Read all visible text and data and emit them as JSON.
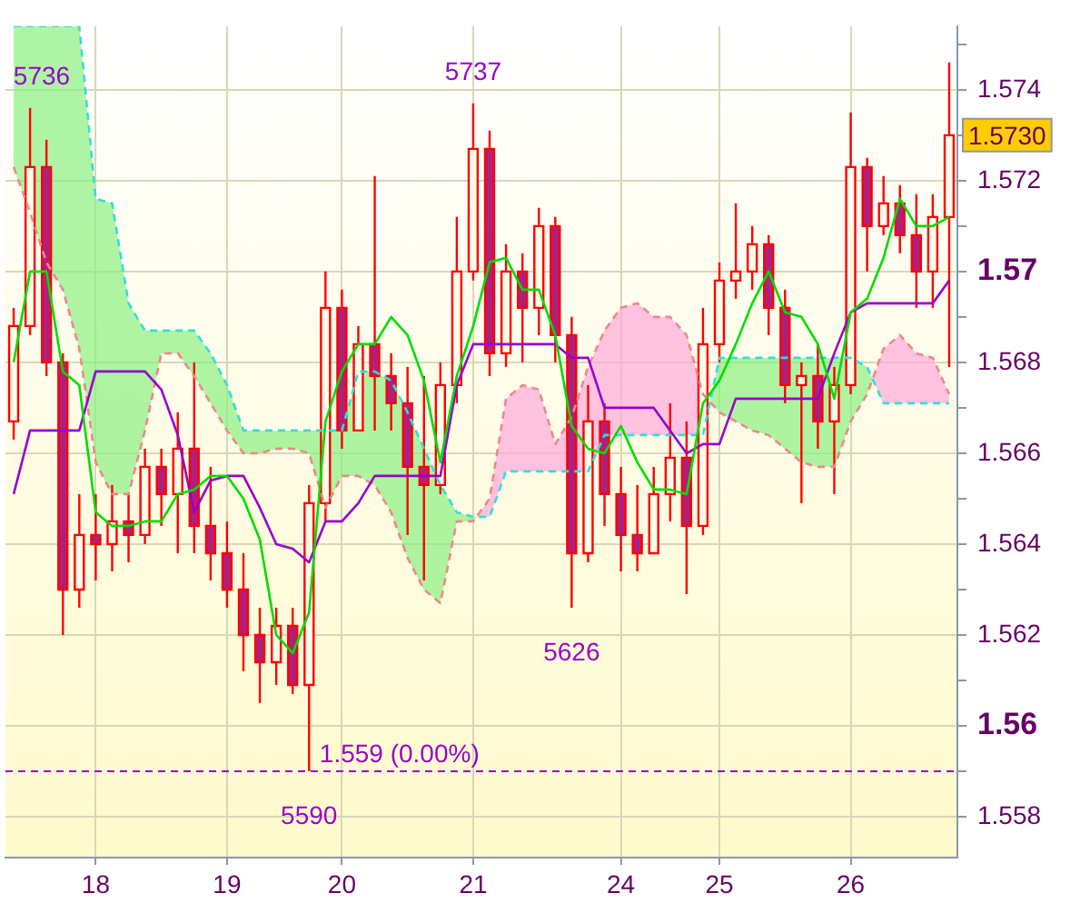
{
  "chart_data": {
    "type": "candlestick",
    "color": "#ff0000",
    "categories": [
      null,
      null,
      null,
      null,
      null,
      "18",
      null,
      null,
      null,
      null,
      null,
      null,
      null,
      "19",
      null,
      null,
      null,
      null,
      null,
      null,
      "20",
      null,
      null,
      null,
      null,
      null,
      null,
      null,
      "21",
      null,
      null,
      null,
      null,
      null,
      null,
      null,
      null,
      "24",
      null,
      null,
      null,
      null,
      null,
      "25",
      null,
      null,
      null,
      null,
      null,
      null,
      null,
      "26",
      null,
      null,
      null,
      null,
      null,
      null
    ],
    "ohlc": [
      [
        1.5667,
        1.5692,
        1.5663,
        1.5688
      ],
      [
        1.5688,
        1.5736,
        1.5686,
        1.5723
      ],
      [
        1.5723,
        1.5729,
        1.5677,
        1.568
      ],
      [
        1.568,
        1.5682,
        1.562,
        1.563
      ],
      [
        1.563,
        1.5651,
        1.5626,
        1.5642
      ],
      [
        1.5642,
        1.5651,
        1.5632,
        1.564
      ],
      [
        1.564,
        1.5653,
        1.5634,
        1.5645
      ],
      [
        1.5645,
        1.5651,
        1.5636,
        1.5642
      ],
      [
        1.5642,
        1.5661,
        1.564,
        1.5657
      ],
      [
        1.5657,
        1.5661,
        1.5644,
        1.5651
      ],
      [
        1.5651,
        1.5669,
        1.5638,
        1.5661
      ],
      [
        1.5661,
        1.568,
        1.5638,
        1.5644
      ],
      [
        1.5644,
        1.5657,
        1.5632,
        1.5638
      ],
      [
        1.5638,
        1.5645,
        1.5626,
        1.563
      ],
      [
        1.563,
        1.5638,
        1.5612,
        1.562
      ],
      [
        1.562,
        1.5626,
        1.5605,
        1.5614
      ],
      [
        1.5614,
        1.5626,
        1.5609,
        1.5622
      ],
      [
        1.5622,
        1.5626,
        1.5607,
        1.5609
      ],
      [
        1.5609,
        1.5653,
        1.559,
        1.5649
      ],
      [
        1.5649,
        1.57,
        1.5645,
        1.5692
      ],
      [
        1.5692,
        1.5696,
        1.5661,
        1.5665
      ],
      [
        1.5665,
        1.5688,
        1.5665,
        1.5684
      ],
      [
        1.5684,
        1.5721,
        1.5665,
        1.5677
      ],
      [
        1.5677,
        1.5682,
        1.5665,
        1.5671
      ],
      [
        1.5671,
        1.5679,
        1.5642,
        1.5657
      ],
      [
        1.5657,
        1.5677,
        1.5632,
        1.5653
      ],
      [
        1.5653,
        1.568,
        1.5651,
        1.5675
      ],
      [
        1.5675,
        1.5712,
        1.5671,
        1.57
      ],
      [
        1.57,
        1.5737,
        1.5698,
        1.5727
      ],
      [
        1.5727,
        1.5731,
        1.5677,
        1.5682
      ],
      [
        1.5682,
        1.5706,
        1.5679,
        1.57
      ],
      [
        1.57,
        1.5704,
        1.568,
        1.5692
      ],
      [
        1.5692,
        1.5714,
        1.5686,
        1.571
      ],
      [
        1.571,
        1.5712,
        1.568,
        1.5686
      ],
      [
        1.5686,
        1.569,
        1.5626,
        1.5638
      ],
      [
        1.5638,
        1.5675,
        1.5636,
        1.5667
      ],
      [
        1.5667,
        1.5671,
        1.5644,
        1.5651
      ],
      [
        1.5651,
        1.5657,
        1.5634,
        1.5642
      ],
      [
        1.5642,
        1.5653,
        1.5634,
        1.5638
      ],
      [
        1.5638,
        1.5657,
        1.5638,
        1.5651
      ],
      [
        1.5651,
        1.5671,
        1.5645,
        1.5659
      ],
      [
        1.5659,
        1.5667,
        1.5629,
        1.5644
      ],
      [
        1.5644,
        1.5692,
        1.5642,
        1.5684
      ],
      [
        1.5684,
        1.5702,
        1.568,
        1.5698
      ],
      [
        1.5698,
        1.5715,
        1.5694,
        1.57
      ],
      [
        1.57,
        1.571,
        1.5696,
        1.5706
      ],
      [
        1.5706,
        1.5708,
        1.5686,
        1.5692
      ],
      [
        1.5692,
        1.5696,
        1.5671,
        1.5675
      ],
      [
        1.5675,
        1.568,
        1.5649,
        1.5677
      ],
      [
        1.5677,
        1.5684,
        1.5661,
        1.5667
      ],
      [
        1.5667,
        1.5679,
        1.5651,
        1.5675
      ],
      [
        1.5675,
        1.5735,
        1.5673,
        1.5723
      ],
      [
        1.5723,
        1.5725,
        1.57,
        1.571
      ],
      [
        1.571,
        1.5721,
        1.5708,
        1.5715
      ],
      [
        1.5715,
        1.5719,
        1.5704,
        1.5708
      ],
      [
        1.5708,
        1.5717,
        1.5692,
        1.57
      ],
      [
        1.57,
        1.5717,
        1.5692,
        1.5712
      ],
      [
        1.5712,
        1.5746,
        1.5679,
        1.573
      ]
    ],
    "value_labels": [
      null,
      "5736",
      null,
      null,
      null,
      null,
      null,
      null,
      null,
      null,
      null,
      null,
      null,
      null,
      null,
      null,
      null,
      null,
      "5590",
      null,
      null,
      null,
      null,
      null,
      null,
      null,
      null,
      null,
      "5737",
      null,
      null,
      null,
      null,
      null,
      "5626",
      null,
      null,
      null,
      null,
      null,
      null,
      null,
      null,
      null,
      null,
      null,
      null,
      null,
      null,
      null,
      null,
      null,
      null,
      null,
      null,
      null,
      null,
      null
    ],
    "ylim": [
      1.5571,
      1.5754
    ],
    "yticks": [
      1.558,
      {
        "value": 1.559,
        "label": null
      },
      1.56,
      {
        "value": 1.561,
        "label": null
      },
      1.562,
      {
        "value": 1.563,
        "label": null
      },
      1.564,
      {
        "value": 1.565,
        "label": null
      },
      1.566,
      {
        "value": 1.567,
        "label": null
      },
      1.568,
      {
        "value": 1.569,
        "label": null
      },
      1.57,
      {
        "value": 1.571,
        "label": null
      },
      1.572,
      {
        "value": 1.573,
        "label": null
      },
      1.574,
      {
        "value": 1.575,
        "label": null
      }
    ],
    "grid": true,
    "series": [
      {
        "type": "line",
        "color": "#00dd00",
        "values": [
          1.568,
          1.57,
          1.57,
          1.5678,
          1.5675,
          1.5647,
          1.5644,
          1.5644,
          1.5645,
          1.5645,
          1.5651,
          1.5652,
          1.5655,
          1.5655,
          1.565,
          1.5641,
          1.562,
          1.5616,
          1.5625,
          1.5667,
          1.5678,
          1.5684,
          1.5684,
          1.569,
          1.5686,
          1.5676,
          1.5658,
          1.5677,
          1.5688,
          1.5702,
          1.5703,
          1.5696,
          1.5696,
          1.5686,
          1.5666,
          1.5661,
          1.566,
          1.5666,
          1.5658,
          1.5652,
          1.5652,
          1.5651,
          1.5671,
          1.5676,
          1.5684,
          1.5693,
          1.57,
          1.5691,
          1.569,
          1.5684,
          1.5672,
          1.5691,
          1.5694,
          1.5703,
          1.5716,
          1.571,
          1.571,
          1.5712
        ]
      },
      {
        "type": "line",
        "color": "#9900cc",
        "values": [
          1.5651,
          1.5665,
          1.5665,
          1.5665,
          1.5665,
          1.5678,
          1.5678,
          1.5678,
          1.5678,
          1.5674,
          1.5664,
          1.5647,
          1.5654,
          1.5655,
          1.5655,
          1.5648,
          1.564,
          1.5639,
          1.5636,
          1.5645,
          1.5645,
          1.5649,
          1.5655,
          1.5655,
          1.5655,
          1.5655,
          1.5655,
          1.5675,
          1.5684,
          1.5684,
          1.5684,
          1.5684,
          1.5684,
          1.5684,
          1.5681,
          1.5681,
          1.567,
          1.567,
          1.567,
          1.567,
          1.5665,
          1.566,
          1.5662,
          1.5662,
          1.5672,
          1.5672,
          1.5672,
          1.5672,
          1.5672,
          1.5672,
          1.5682,
          1.5691,
          1.5693,
          1.5693,
          1.5693,
          1.5693,
          1.5693,
          1.5698
        ]
      },
      {
        "type": "line",
        "color": "#33dddd",
        "line_style": "dashed",
        "values": [
          1.5754,
          1.5754,
          1.5754,
          1.5754,
          1.5754,
          1.5716,
          1.5715,
          1.5693,
          1.5687,
          1.5687,
          1.5687,
          1.5687,
          1.5682,
          1.5675,
          1.5665,
          1.5665,
          1.5665,
          1.5665,
          1.5665,
          1.5665,
          1.5665,
          1.5678,
          1.5678,
          1.5676,
          1.5669,
          1.5661,
          1.5653,
          1.5647,
          1.5646,
          1.5646,
          1.5656,
          1.5656,
          1.5656,
          1.5656,
          1.5656,
          1.5656,
          1.5664,
          1.5664,
          1.5664,
          1.5664,
          1.5664,
          1.5664,
          1.5664,
          1.5681,
          1.5681,
          1.5681,
          1.5681,
          1.5681,
          1.5681,
          1.5681,
          1.5681,
          1.5681,
          1.5679,
          1.5671,
          1.5671,
          1.5671,
          1.5671,
          1.5671
        ]
      },
      {
        "type": "line",
        "color": "#ee8888",
        "line_style": "dashed",
        "lower": [
          1.5754,
          1.5754,
          1.5754,
          1.5754,
          1.5754,
          1.5716,
          1.5715,
          1.5693,
          1.5687,
          1.5687,
          1.5687,
          1.5687,
          1.5682,
          1.5675,
          1.5665,
          1.5665,
          1.5665,
          1.5665,
          1.5665,
          1.5665,
          1.5665,
          1.5678,
          1.5678,
          1.5676,
          1.5669,
          1.5661,
          1.5653,
          1.5647,
          1.5646,
          1.5646,
          1.5656,
          1.5656,
          1.5656,
          1.5656,
          1.5656,
          1.5656,
          1.5664,
          1.5664,
          1.5664,
          1.5664,
          1.5664,
          1.5664,
          1.5664,
          1.5681,
          1.5681,
          1.5681,
          1.5681,
          1.5681,
          1.5681,
          1.5681,
          1.5681,
          1.5681,
          1.5679,
          1.5671,
          1.5671,
          1.5671,
          1.5671,
          1.5671
        ],
        "upper": [
          1.5723,
          1.5713,
          1.5702,
          1.5696,
          1.5683,
          1.5658,
          1.5651,
          1.5651,
          1.5665,
          1.5682,
          1.5682,
          1.5677,
          1.5671,
          1.5665,
          1.566,
          1.566,
          1.5661,
          1.5661,
          1.566,
          1.5648,
          1.5655,
          1.5655,
          1.5653,
          1.5647,
          1.5637,
          1.563,
          1.5627,
          1.5645,
          1.5645,
          1.565,
          1.5672,
          1.5675,
          1.5674,
          1.5662,
          1.5668,
          1.5679,
          1.5687,
          1.5692,
          1.5693,
          1.569,
          1.569,
          1.5686,
          1.5673,
          1.5669,
          1.5667,
          1.5665,
          1.5664,
          1.5661,
          1.5658,
          1.5657,
          1.5657,
          1.5667,
          1.5673,
          1.5683,
          1.5686,
          1.5682,
          1.5681,
          1.5673
        ],
        "values": [
          1.5723,
          1.5713,
          1.5702,
          1.5696,
          1.5683,
          1.5658,
          1.5651,
          1.5651,
          1.5665,
          1.5682,
          1.5682,
          1.5677,
          1.5671,
          1.5665,
          1.566,
          1.566,
          1.5661,
          1.5661,
          1.566,
          1.5648,
          1.5655,
          1.5655,
          1.5653,
          1.5647,
          1.5637,
          1.563,
          1.5627,
          1.5645,
          1.5645,
          1.565,
          1.5672,
          1.5675,
          1.5674,
          1.5662,
          1.5668,
          1.5679,
          1.5687,
          1.5692,
          1.5693,
          1.569,
          1.569,
          1.5686,
          1.5673,
          1.5669,
          1.5667,
          1.5665,
          1.5664,
          1.5661,
          1.5658,
          1.5657,
          1.5657,
          1.5667,
          1.5673,
          1.5683,
          1.5686,
          1.5682,
          1.5681,
          1.5673
        ]
      }
    ],
    "ref_lines": [
      {
        "axis": "y",
        "value": 1.559,
        "label": "1.559 (0.00%)",
        "color": "#9900cc",
        "line_style": "dashed"
      }
    ],
    "annotations": [
      "1.5730"
    ]
  }
}
